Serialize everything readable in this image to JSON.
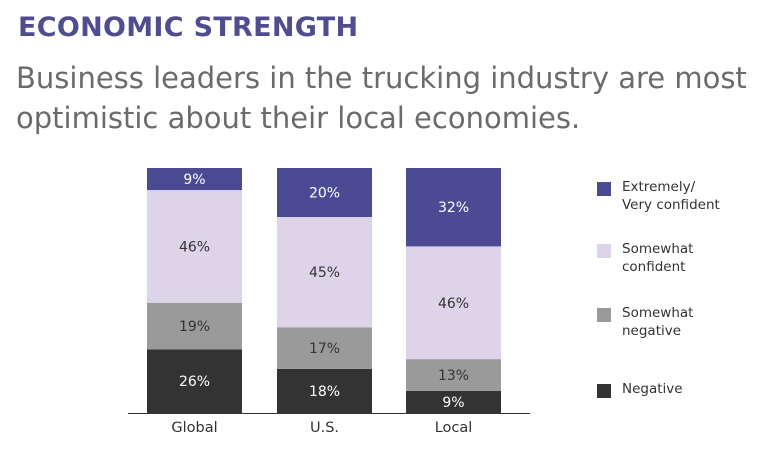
{
  "heading": "ECONOMIC STRENGTH",
  "subtitle": "Business leaders in the trucking industry are most optimistic about their local economies.",
  "colors": {
    "extremely_confident": "#4b4b94",
    "somewhat_confident": "#ddd4e9",
    "somewhat_negative": "#9a9a9a",
    "negative": "#333333",
    "axis": "#333333"
  },
  "chart_data": {
    "type": "bar",
    "stacked": true,
    "categories": [
      "Global",
      "U.S.",
      "Local"
    ],
    "series": [
      {
        "name": "Negative",
        "values": [
          26,
          18,
          9
        ],
        "labels": [
          "26%",
          "18%",
          "9%"
        ]
      },
      {
        "name": "Somewhat negative",
        "values": [
          19,
          17,
          13
        ],
        "labels": [
          "19%",
          "17%",
          "13%"
        ]
      },
      {
        "name": "Somewhat confident",
        "values": [
          46,
          45,
          46
        ],
        "labels": [
          "46%",
          "45%",
          "46%"
        ]
      },
      {
        "name": "Extremely/ Very confident",
        "values": [
          9,
          20,
          32
        ],
        "labels": [
          "9%",
          "20%",
          "32%"
        ]
      }
    ],
    "ylim": [
      0,
      100
    ],
    "legend": {
      "position": "right",
      "items": [
        {
          "label": "Extremely/\nVery confident",
          "color": "#4b4b94"
        },
        {
          "label": "Somewhat\nconfident",
          "color": "#ddd4e9"
        },
        {
          "label": "Somewhat\nnegative",
          "color": "#9a9a9a"
        },
        {
          "label": "Negative",
          "color": "#333333"
        }
      ]
    }
  }
}
